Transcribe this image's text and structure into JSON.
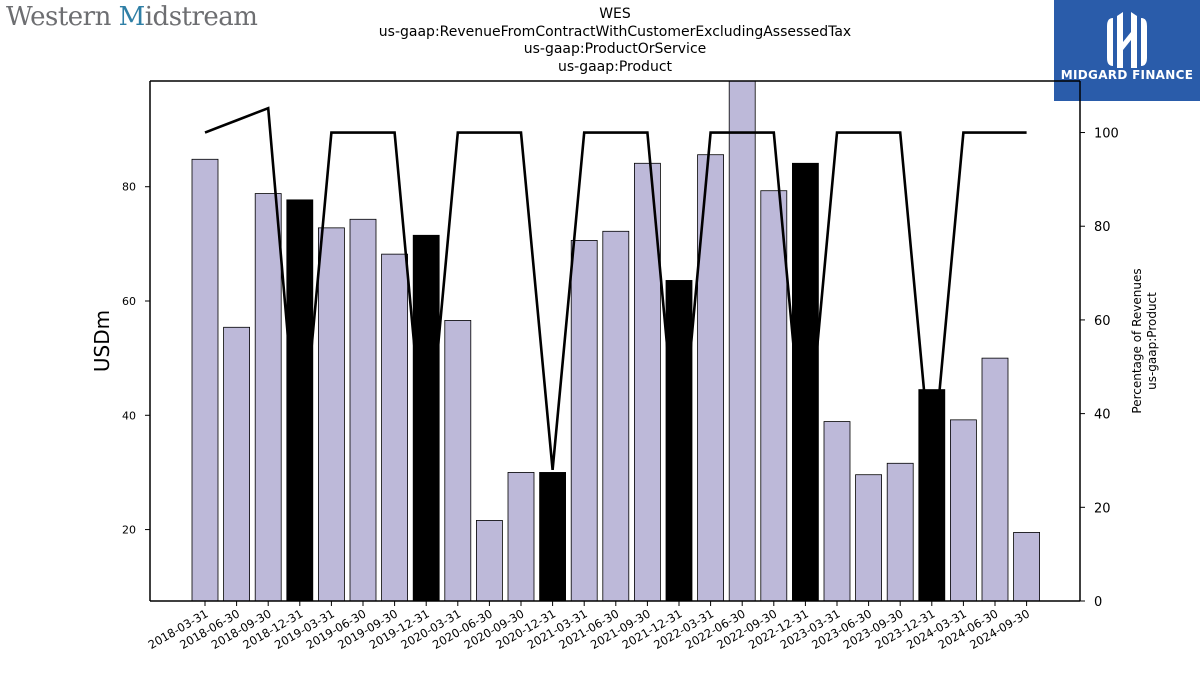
{
  "brand": {
    "name_prefix": "Western ",
    "name_accent": "M",
    "name_suffix": "idstream"
  },
  "logo": {
    "text": "MIDGARD FINANCE",
    "color": "#2a5caa"
  },
  "chart_data": {
    "type": "bar",
    "title_lines": [
      "WES",
      "us-gaap:RevenueFromContractWithCustomerExcludingAssessedTax",
      "us-gaap:ProductOrService",
      "us-gaap:Product"
    ],
    "xlabel": "",
    "ylabel": "USDm",
    "y2label_lines": [
      "Percentage of Revenues",
      "us-gaap:Product"
    ],
    "ylim": [
      7.5,
      98.5
    ],
    "y2lim": [
      0,
      111
    ],
    "yticks": [
      20,
      40,
      60,
      80
    ],
    "y2ticks": [
      0,
      20,
      40,
      60,
      80,
      100
    ],
    "grid": false,
    "categories": [
      "2018-03-31",
      "2018-06-30",
      "2018-09-30",
      "2018-12-31",
      "2019-03-31",
      "2019-06-30",
      "2019-09-30",
      "2019-12-31",
      "2020-03-31",
      "2020-06-30",
      "2020-09-30",
      "2020-12-31",
      "2021-03-31",
      "2021-06-30",
      "2021-09-30",
      "2021-12-31",
      "2022-03-31",
      "2022-06-30",
      "2022-09-30",
      "2022-12-31",
      "2023-03-31",
      "2023-06-30",
      "2023-09-30",
      "2023-12-31",
      "2024-03-31",
      "2024-06-30",
      "2024-09-30"
    ],
    "series": [
      {
        "type": "bar",
        "axis": "left",
        "values": [
          84.8,
          55.4,
          78.8,
          77.7,
          72.8,
          74.3,
          68.2,
          71.5,
          56.6,
          21.6,
          30.0,
          30.0,
          70.6,
          72.2,
          84.1,
          63.6,
          85.6,
          98.5,
          79.3,
          84.1,
          38.9,
          29.6,
          31.6,
          44.5,
          39.2,
          50.0,
          19.5
        ],
        "highlight_indices": [
          3,
          7,
          11,
          15,
          19,
          23
        ],
        "color": "#bdb9d9",
        "highlight_color": "#000000"
      },
      {
        "type": "line",
        "axis": "right",
        "values": [
          100,
          102.6,
          105.2,
          27,
          100,
          100,
          100,
          27,
          100,
          100,
          100,
          28,
          100,
          100,
          100,
          27,
          100,
          100,
          100,
          27,
          100,
          100,
          100,
          27,
          100,
          100,
          100
        ],
        "color": "#000000"
      }
    ]
  }
}
